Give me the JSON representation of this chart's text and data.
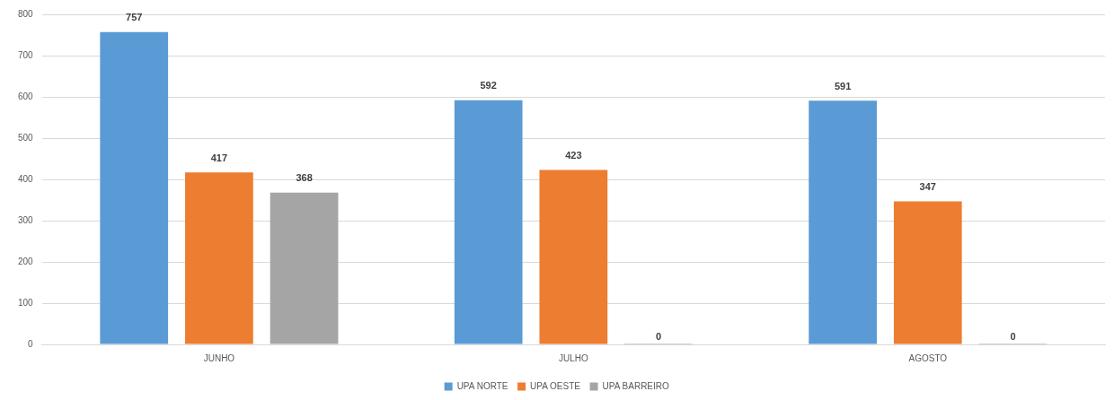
{
  "chart_data": {
    "type": "bar",
    "categories": [
      "JUNHO",
      "JULHO",
      "AGOSTO"
    ],
    "series": [
      {
        "name": "UPA NORTE",
        "color": "#5b9bd5",
        "values": [
          757,
          592,
          591
        ]
      },
      {
        "name": "UPA OESTE",
        "color": "#ed7d31",
        "values": [
          417,
          423,
          347
        ]
      },
      {
        "name": "UPA BARREIRO",
        "color": "#a5a5a5",
        "values": [
          368,
          0,
          0
        ]
      }
    ],
    "ylim": [
      0,
      800
    ],
    "yticks": [
      0,
      100,
      200,
      300,
      400,
      500,
      600,
      700,
      800
    ],
    "grid": "y",
    "legend": "bottom",
    "data_labels": true
  }
}
